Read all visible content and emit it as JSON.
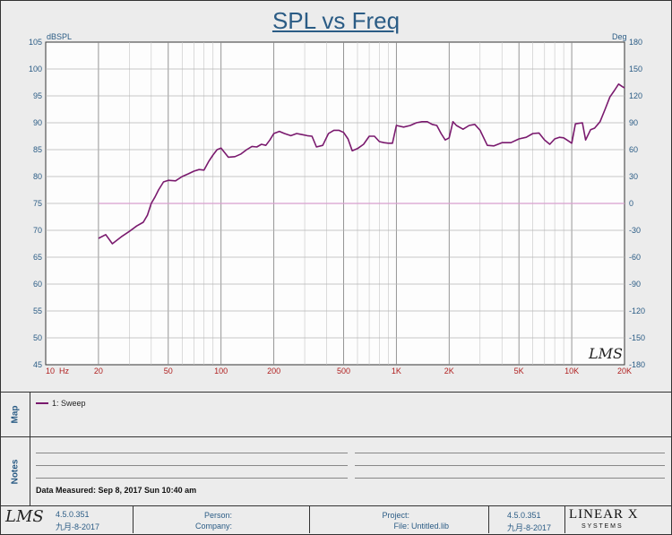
{
  "title": "SPL vs Freq",
  "chart_data": {
    "type": "line",
    "title": "SPL vs Freq",
    "xlabel": "Hz",
    "ylabel_left": "dBSPL",
    "ylabel_right": "Deg",
    "x_scale": "log",
    "xlim": [
      10,
      20000
    ],
    "ylim": [
      45,
      105
    ],
    "y2lim": [
      -180,
      180
    ],
    "x_tick_labels": [
      "10",
      "20",
      "50",
      "100",
      "200",
      "500",
      "1K",
      "2K",
      "5K",
      "10K",
      "20K"
    ],
    "x_tick_values": [
      10,
      20,
      50,
      100,
      200,
      500,
      1000,
      2000,
      5000,
      10000,
      20000
    ],
    "y_ticks": [
      45,
      50,
      55,
      60,
      65,
      70,
      75,
      80,
      85,
      90,
      95,
      100,
      105
    ],
    "y2_ticks": [
      -180,
      -150,
      -120,
      -90,
      -60,
      -30,
      0,
      30,
      60,
      90,
      120,
      150,
      180
    ],
    "grid": true,
    "series": [
      {
        "name": "1: Sweep",
        "color": "#7a1a6e",
        "x": [
          20,
          22,
          24,
          27,
          30,
          33,
          36,
          38,
          40,
          42,
          44,
          47,
          50,
          55,
          60,
          65,
          70,
          75,
          80,
          85,
          90,
          95,
          100,
          110,
          120,
          130,
          140,
          150,
          160,
          170,
          180,
          190,
          200,
          215,
          230,
          250,
          270,
          290,
          310,
          330,
          350,
          380,
          410,
          440,
          470,
          500,
          530,
          560,
          600,
          650,
          700,
          750,
          800,
          850,
          900,
          950,
          1000,
          1100,
          1200,
          1300,
          1400,
          1500,
          1600,
          1700,
          1800,
          1900,
          2000,
          2100,
          2200,
          2400,
          2600,
          2800,
          3000,
          3300,
          3600,
          4000,
          4500,
          5000,
          5500,
          6000,
          6500,
          7000,
          7500,
          8000,
          8500,
          9000,
          9500,
          10000,
          10500,
          11000,
          11500,
          12000,
          12800,
          13500,
          14500,
          15500,
          16500,
          17500,
          18500,
          19500,
          20000
        ],
        "y": [
          68.5,
          69.2,
          67.5,
          68.8,
          69.8,
          70.8,
          71.5,
          72.8,
          75.0,
          76.2,
          77.5,
          79.0,
          79.3,
          79.2,
          80.0,
          80.5,
          81.0,
          81.3,
          81.2,
          82.8,
          84.0,
          85.0,
          85.3,
          83.6,
          83.7,
          84.2,
          85.0,
          85.6,
          85.5,
          86.0,
          85.8,
          86.8,
          88.0,
          88.4,
          88.0,
          87.6,
          88.0,
          87.8,
          87.6,
          87.5,
          85.5,
          85.8,
          88.0,
          88.6,
          88.6,
          88.2,
          87.0,
          84.8,
          85.2,
          86.0,
          87.5,
          87.5,
          86.5,
          86.3,
          86.2,
          86.2,
          89.5,
          89.2,
          89.5,
          90.0,
          90.2,
          90.2,
          89.7,
          89.5,
          88.0,
          86.8,
          87.2,
          90.2,
          89.5,
          88.8,
          89.5,
          89.7,
          88.6,
          85.8,
          85.7,
          86.3,
          86.3,
          87.0,
          87.3,
          88.0,
          88.1,
          86.8,
          86.0,
          87.0,
          87.3,
          87.2,
          86.7,
          86.2,
          89.8,
          89.9,
          90.0,
          86.8,
          88.7,
          89.0,
          90.2,
          92.5,
          94.8,
          96.0,
          97.2,
          96.7,
          96.5
        ]
      }
    ],
    "reference_line": {
      "y2": 0,
      "color": "#d8a0d0"
    }
  },
  "logo_text": "LMS",
  "map_label": "Map",
  "notes_label": "Notes",
  "legend": {
    "label": "1: Sweep"
  },
  "notes": {
    "data_measured": "Data Measured: Sep 8, 2017 Sun 10:40 am"
  },
  "footer": {
    "version_left": "4.5.0.351",
    "date_left": "九月-8-2017",
    "person_label": "Person:",
    "company_label": "Company:",
    "project_label": "Project:",
    "file_label": "File: Untitled.lib",
    "version_right": "4.5.0.351",
    "date_right": "九月-8-2017",
    "brand_main": "LINEAR X",
    "brand_sub": "S Y S T E M S"
  }
}
